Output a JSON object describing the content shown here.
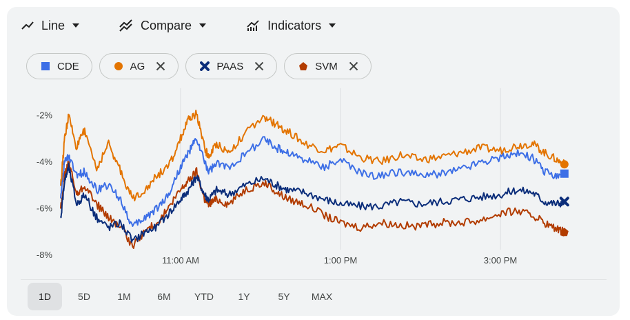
{
  "toolbar": {
    "chart_type_label": "Line",
    "compare_label": "Compare",
    "indicators_label": "Indicators"
  },
  "chips": [
    {
      "ticker": "CDE",
      "color": "#3d6fe6",
      "marker": "square",
      "removable": false
    },
    {
      "ticker": "AG",
      "color": "#e37400",
      "marker": "circle",
      "removable": true
    },
    {
      "ticker": "PAAS",
      "color": "#0b2d7a",
      "marker": "cross",
      "removable": true
    },
    {
      "ticker": "SVM",
      "color": "#b23c00",
      "marker": "pentagon",
      "removable": true
    }
  ],
  "ranges": [
    "1D",
    "5D",
    "1M",
    "6M",
    "YTD",
    "1Y",
    "5Y",
    "MAX"
  ],
  "active_range": "1D",
  "chart_data": {
    "type": "line",
    "title": "",
    "xlabel": "",
    "ylabel": "",
    "x_ticks": [
      "11:00 AM",
      "1:00 PM",
      "3:00 PM"
    ],
    "y_ticks": [
      "-2%",
      "-4%",
      "-6%",
      "-8%"
    ],
    "ylim": [
      -8,
      -0.6
    ],
    "x_unit": "hours since 9:30 AM",
    "xlim": [
      0,
      6.5
    ],
    "grid": "vertical",
    "series": [
      {
        "name": "AG",
        "color": "#e37400",
        "marker": "circle",
        "x": [
          0,
          0.05,
          0.1,
          0.2,
          0.3,
          0.45,
          0.6,
          0.75,
          0.9,
          1.05,
          1.2,
          1.35,
          1.5,
          1.6,
          1.7,
          1.8,
          1.85,
          1.95,
          2.1,
          2.3,
          2.55,
          2.7,
          2.85,
          3.05,
          3.3,
          3.5,
          3.75,
          4.0,
          4.25,
          4.5,
          4.75,
          5.0,
          5.25,
          5.5,
          5.7,
          5.9,
          6.05,
          6.2,
          6.3
        ],
        "y": [
          -5.0,
          -3.0,
          -2.0,
          -3.4,
          -2.6,
          -4.3,
          -3.2,
          -4.4,
          -5.6,
          -5.2,
          -4.6,
          -4.2,
          -3.0,
          -2.2,
          -1.9,
          -3.4,
          -3.8,
          -3.2,
          -3.6,
          -2.8,
          -2.1,
          -2.4,
          -2.7,
          -3.2,
          -3.5,
          -3.3,
          -3.8,
          -4.0,
          -3.7,
          -3.9,
          -3.8,
          -3.6,
          -3.4,
          -3.5,
          -3.3,
          -3.2,
          -3.6,
          -3.9,
          -4.1
        ]
      },
      {
        "name": "CDE",
        "color": "#3d6fe6",
        "marker": "square",
        "x": [
          0,
          0.05,
          0.1,
          0.2,
          0.3,
          0.45,
          0.6,
          0.75,
          0.9,
          1.05,
          1.2,
          1.35,
          1.5,
          1.6,
          1.7,
          1.8,
          1.85,
          1.95,
          2.1,
          2.3,
          2.55,
          2.7,
          2.85,
          3.05,
          3.3,
          3.5,
          3.75,
          4.0,
          4.25,
          4.5,
          4.75,
          5.0,
          5.25,
          5.5,
          5.7,
          5.9,
          6.05,
          6.2,
          6.3
        ],
        "y": [
          -5.4,
          -4.0,
          -3.8,
          -4.6,
          -4.4,
          -5.2,
          -5.0,
          -5.6,
          -6.8,
          -6.4,
          -6.0,
          -5.4,
          -4.2,
          -3.6,
          -3.0,
          -4.0,
          -4.4,
          -4.1,
          -4.2,
          -3.7,
          -3.0,
          -3.4,
          -3.6,
          -3.9,
          -4.2,
          -3.9,
          -4.5,
          -4.6,
          -4.4,
          -4.6,
          -4.5,
          -4.3,
          -4.0,
          -3.8,
          -3.6,
          -3.8,
          -4.4,
          -4.6,
          -4.5
        ]
      },
      {
        "name": "PAAS",
        "color": "#0b2d7a",
        "marker": "cross",
        "x": [
          0,
          0.05,
          0.1,
          0.2,
          0.3,
          0.45,
          0.6,
          0.75,
          0.9,
          1.05,
          1.2,
          1.35,
          1.5,
          1.6,
          1.7,
          1.8,
          1.85,
          1.95,
          2.1,
          2.3,
          2.55,
          2.7,
          2.85,
          3.05,
          3.3,
          3.5,
          3.75,
          4.0,
          4.25,
          4.5,
          4.75,
          5.0,
          5.25,
          5.5,
          5.7,
          5.9,
          6.05,
          6.2,
          6.3
        ],
        "y": [
          -6.4,
          -4.8,
          -4.2,
          -5.8,
          -5.4,
          -6.4,
          -6.8,
          -6.6,
          -7.4,
          -7.0,
          -6.8,
          -6.2,
          -5.6,
          -5.2,
          -4.6,
          -5.4,
          -5.6,
          -5.2,
          -5.4,
          -5.0,
          -4.7,
          -5.0,
          -5.2,
          -5.3,
          -5.6,
          -5.8,
          -5.9,
          -5.9,
          -5.7,
          -5.8,
          -5.7,
          -5.6,
          -5.5,
          -5.4,
          -5.2,
          -5.3,
          -5.7,
          -5.8,
          -5.7
        ]
      },
      {
        "name": "SVM",
        "color": "#b23c00",
        "marker": "pentagon",
        "x": [
          0,
          0.05,
          0.1,
          0.2,
          0.3,
          0.45,
          0.6,
          0.75,
          0.9,
          1.05,
          1.2,
          1.35,
          1.5,
          1.6,
          1.7,
          1.8,
          1.85,
          1.95,
          2.1,
          2.3,
          2.55,
          2.7,
          2.85,
          3.05,
          3.3,
          3.5,
          3.75,
          4.0,
          4.25,
          4.5,
          4.75,
          5.0,
          5.25,
          5.5,
          5.7,
          5.9,
          6.05,
          6.2,
          6.3
        ],
        "y": [
          -6.0,
          -4.6,
          -4.0,
          -5.4,
          -5.0,
          -5.8,
          -6.4,
          -6.8,
          -7.6,
          -7.0,
          -6.6,
          -6.0,
          -5.2,
          -4.8,
          -4.4,
          -5.6,
          -5.8,
          -5.6,
          -5.8,
          -5.2,
          -4.9,
          -5.3,
          -5.6,
          -5.8,
          -6.3,
          -6.6,
          -6.8,
          -6.6,
          -6.7,
          -6.8,
          -6.6,
          -6.6,
          -6.5,
          -6.2,
          -6.1,
          -6.3,
          -6.6,
          -6.9,
          -7.0
        ]
      }
    ]
  }
}
